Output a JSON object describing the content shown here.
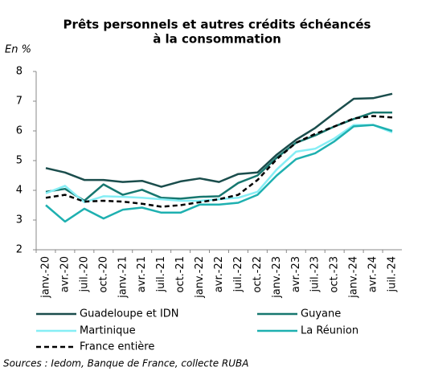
{
  "chart_data": {
    "type": "line",
    "title": [
      "Prêts personnels et autres crédits échéancés",
      "à la consommation"
    ],
    "y_label": "En %",
    "source": "Sources : Iedom, Banque de France, collecte RUBA",
    "categories": [
      "janv.-20",
      "avr.-20",
      "juil.-20",
      "oct.-20",
      "janv.-21",
      "avr.-21",
      "juil.-21",
      "oct.-21",
      "janv.-22",
      "avr.-22",
      "juil.-22",
      "oct.-22",
      "janv.-23",
      "avr.-23",
      "juil.-23",
      "oct.-23",
      "janv.-24",
      "avr.-24",
      "juil.-24"
    ],
    "series": [
      {
        "name": "Guadeloupe et IDN",
        "color": "#1a4d4c",
        "values": [
          4.75,
          4.6,
          4.35,
          4.35,
          4.28,
          4.32,
          4.12,
          4.3,
          4.4,
          4.28,
          4.55,
          4.6,
          5.2,
          5.7,
          6.1,
          6.6,
          7.08,
          7.1,
          7.25
        ]
      },
      {
        "name": "Guyane",
        "color": "#16776f",
        "values": [
          3.95,
          4.05,
          3.65,
          4.2,
          3.85,
          4.02,
          3.75,
          3.72,
          3.78,
          3.8,
          4.25,
          4.5,
          5.1,
          5.6,
          5.85,
          6.15,
          6.4,
          6.62,
          6.62
        ]
      },
      {
        "name": "Martinique",
        "color": "#86eef5",
        "values": [
          3.9,
          4.15,
          3.6,
          3.8,
          3.78,
          3.75,
          3.7,
          3.65,
          3.65,
          3.7,
          3.75,
          3.95,
          4.7,
          5.3,
          5.4,
          5.75,
          6.2,
          6.2,
          5.95
        ]
      },
      {
        "name": "La Réunion",
        "color": "#1eb0b0",
        "values": [
          3.5,
          2.95,
          3.38,
          3.05,
          3.35,
          3.42,
          3.25,
          3.25,
          3.52,
          3.52,
          3.58,
          3.85,
          4.5,
          5.05,
          5.25,
          5.65,
          6.15,
          6.2,
          6.0
        ]
      },
      {
        "name": "France entière",
        "color": "#000000",
        "line_style": "dashed",
        "values": [
          3.75,
          3.85,
          3.62,
          3.65,
          3.62,
          3.55,
          3.45,
          3.5,
          3.6,
          3.7,
          3.85,
          4.35,
          5.05,
          5.6,
          5.9,
          6.15,
          6.42,
          6.5,
          6.45
        ]
      }
    ],
    "ylim": [
      2,
      8
    ],
    "yticks": [
      2,
      3,
      4,
      5,
      6,
      7,
      8
    ],
    "grid": false
  }
}
